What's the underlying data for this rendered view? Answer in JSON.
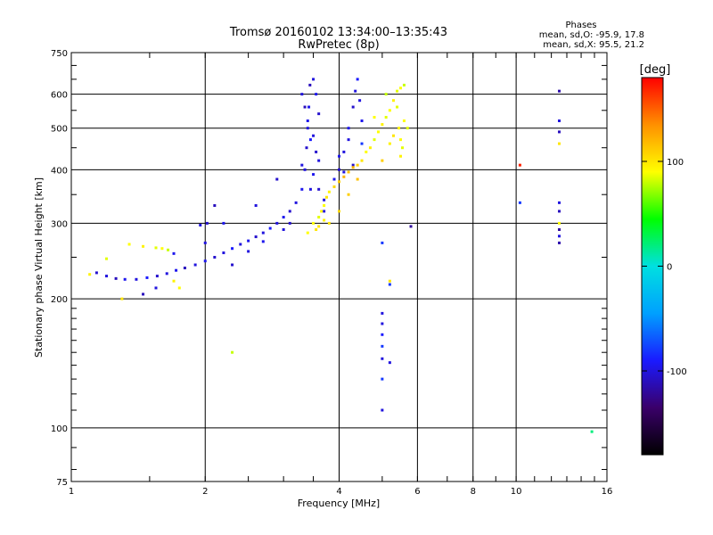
{
  "header": {
    "title": "Tromsø 20160102 13:34:00–13:35:43",
    "subtitle": "RwPretec (8p)"
  },
  "stats": {
    "heading": "Phases",
    "o_line": "mean, sd,O: -95.9, 17.8",
    "x_line": "mean, sd,X:  95.5, 21.2"
  },
  "colorbar": {
    "unit": "[deg]",
    "ticks": [
      "100",
      "0",
      "-100"
    ],
    "colors": [
      "#000000",
      "#3a006a",
      "#1a1aff",
      "#00a0ff",
      "#00e0e0",
      "#00ff00",
      "#ffff00",
      "#ff9000",
      "#ff0000"
    ]
  },
  "chart_data": {
    "type": "scatter",
    "title": "Tromsø 20160102 13:34:00–13:35:43",
    "subtitle": "RwPretec (8p)",
    "xlabel": "Frequency [MHz]",
    "ylabel": "Stationary phase Virtual Height [km]",
    "xscale": "log",
    "yscale": "log",
    "xlim": [
      1,
      16
    ],
    "ylim": [
      75,
      750
    ],
    "grid": true,
    "x_ticks": [
      "1",
      "2",
      "4",
      "6",
      "8",
      "10",
      "16"
    ],
    "y_ticks": [
      "75",
      "100",
      "200",
      "300",
      "400",
      "500",
      "600",
      "750"
    ],
    "colorbar_label": "[deg]",
    "colorbar_range": [
      -180,
      180
    ],
    "series": [
      {
        "description": "O-mode",
        "points": [
          [
            1.14,
            230,
            -105
          ],
          [
            1.2,
            226,
            -100
          ],
          [
            1.26,
            223,
            -110
          ],
          [
            1.32,
            222,
            -95
          ],
          [
            1.4,
            222,
            -100
          ],
          [
            1.48,
            224,
            -90
          ],
          [
            1.56,
            226,
            -105
          ],
          [
            1.64,
            229,
            -100
          ],
          [
            1.72,
            233,
            -95
          ],
          [
            1.8,
            236,
            -110
          ],
          [
            1.9,
            240,
            -100
          ],
          [
            2.0,
            245,
            -95
          ],
          [
            2.1,
            250,
            -105
          ],
          [
            2.2,
            256,
            -100
          ],
          [
            2.3,
            262,
            -90
          ],
          [
            2.4,
            268,
            -100
          ],
          [
            2.5,
            273,
            -95
          ],
          [
            2.6,
            279,
            -105
          ],
          [
            2.7,
            285,
            -100
          ],
          [
            2.8,
            292,
            -90
          ],
          [
            2.9,
            300,
            -100
          ],
          [
            3.0,
            310,
            -95
          ],
          [
            3.1,
            320,
            -105
          ],
          [
            3.2,
            335,
            -100
          ],
          [
            3.3,
            360,
            -95
          ],
          [
            3.35,
            400,
            -100
          ],
          [
            3.38,
            450,
            -105
          ],
          [
            3.4,
            500,
            -100
          ],
          [
            3.42,
            560,
            -95
          ],
          [
            3.44,
            630,
            -110
          ],
          [
            3.5,
            650,
            -100
          ],
          [
            3.55,
            600,
            -95
          ],
          [
            3.6,
            540,
            -105
          ],
          [
            3.3,
            410,
            -100
          ],
          [
            3.45,
            470,
            -90
          ],
          [
            2.2,
            300,
            -95
          ],
          [
            2.6,
            330,
            -100
          ],
          [
            2.9,
            380,
            -105
          ],
          [
            2.0,
            270,
            -100
          ],
          [
            1.7,
            255,
            -95
          ],
          [
            2.3,
            240,
            -105
          ],
          [
            2.5,
            258,
            -100
          ],
          [
            2.7,
            272,
            -95
          ],
          [
            3.0,
            290,
            -100
          ],
          [
            3.1,
            300,
            -105
          ],
          [
            3.7,
            340,
            -100
          ],
          [
            3.9,
            380,
            -95
          ],
          [
            4.0,
            400,
            -105
          ],
          [
            4.1,
            440,
            -100
          ],
          [
            4.2,
            500,
            -95
          ],
          [
            4.3,
            560,
            -105
          ],
          [
            4.35,
            610,
            -100
          ],
          [
            4.4,
            650,
            -90
          ],
          [
            4.45,
            580,
            -100
          ],
          [
            4.5,
            520,
            -95
          ],
          [
            4.1,
            395,
            -100
          ],
          [
            4.3,
            410,
            -105
          ],
          [
            4.2,
            470,
            -100
          ],
          [
            4.0,
            430,
            -95
          ],
          [
            4.5,
            460,
            -80
          ],
          [
            1.55,
            212,
            -100
          ],
          [
            1.45,
            205,
            -110
          ],
          [
            1.95,
            297,
            -100
          ],
          [
            2.02,
            300,
            -105
          ],
          [
            2.1,
            330,
            -110
          ],
          [
            5.0,
            270,
            -80
          ],
          [
            5.2,
            216,
            -80
          ],
          [
            5.0,
            185,
            -100
          ],
          [
            5.0,
            175,
            -100
          ],
          [
            5.0,
            165,
            -90
          ],
          [
            5.0,
            155,
            -80
          ],
          [
            5.0,
            145,
            -100
          ],
          [
            5.0,
            110,
            -100
          ],
          [
            5.0,
            130,
            -80
          ],
          [
            5.2,
            142,
            -100
          ],
          [
            5.8,
            295,
            -120
          ],
          [
            10.2,
            335,
            -80
          ],
          [
            12.5,
            610,
            -115
          ],
          [
            12.5,
            520,
            -100
          ],
          [
            12.5,
            490,
            -110
          ],
          [
            12.5,
            335,
            -100
          ],
          [
            12.5,
            320,
            -110
          ],
          [
            12.5,
            290,
            -120
          ],
          [
            12.5,
            280,
            -100
          ],
          [
            12.5,
            270,
            -115
          ],
          [
            3.3,
            600,
            -100
          ],
          [
            3.35,
            560,
            -110
          ],
          [
            3.4,
            520,
            -95
          ],
          [
            3.5,
            480,
            -100
          ],
          [
            3.55,
            440,
            -105
          ],
          [
            3.6,
            420,
            -100
          ],
          [
            3.5,
            390,
            -95
          ],
          [
            3.45,
            360,
            -100
          ],
          [
            3.6,
            360,
            -105
          ],
          [
            3.7,
            320,
            -100
          ]
        ]
      },
      {
        "description": "X-mode",
        "points": [
          [
            1.2,
            248,
            85
          ],
          [
            1.35,
            268,
            90
          ],
          [
            1.45,
            265,
            95
          ],
          [
            1.55,
            263,
            85
          ],
          [
            1.6,
            262,
            90
          ],
          [
            1.65,
            260,
            80
          ],
          [
            1.7,
            220,
            95
          ],
          [
            1.75,
            212,
            90
          ],
          [
            1.3,
            200,
            100
          ],
          [
            1.1,
            228,
            95
          ],
          [
            2.3,
            150,
            80
          ],
          [
            3.5,
            300,
            90
          ],
          [
            3.55,
            290,
            100
          ],
          [
            3.6,
            310,
            85
          ],
          [
            3.65,
            320,
            95
          ],
          [
            3.7,
            330,
            90
          ],
          [
            3.75,
            345,
            100
          ],
          [
            3.8,
            355,
            95
          ],
          [
            3.9,
            365,
            105
          ],
          [
            4.0,
            375,
            110
          ],
          [
            4.1,
            385,
            120
          ],
          [
            4.2,
            395,
            115
          ],
          [
            4.3,
            405,
            120
          ],
          [
            4.4,
            410,
            110
          ],
          [
            4.5,
            420,
            100
          ],
          [
            4.2,
            350,
            110
          ],
          [
            4.4,
            380,
            115
          ],
          [
            4.6,
            440,
            90
          ],
          [
            4.7,
            450,
            95
          ],
          [
            4.8,
            470,
            85
          ],
          [
            4.9,
            490,
            90
          ],
          [
            5.0,
            510,
            95
          ],
          [
            5.1,
            530,
            85
          ],
          [
            5.2,
            550,
            90
          ],
          [
            5.3,
            580,
            95
          ],
          [
            5.4,
            610,
            85
          ],
          [
            5.5,
            620,
            90
          ],
          [
            5.6,
            630,
            80
          ],
          [
            5.45,
            500,
            95
          ],
          [
            5.5,
            470,
            90
          ],
          [
            5.55,
            450,
            85
          ],
          [
            5.5,
            430,
            95
          ],
          [
            5.3,
            480,
            100
          ],
          [
            5.2,
            460,
            95
          ],
          [
            5.0,
            420,
            110
          ],
          [
            4.8,
            530,
            90
          ],
          [
            5.1,
            600,
            80
          ],
          [
            5.4,
            560,
            85
          ],
          [
            5.6,
            520,
            90
          ],
          [
            5.7,
            500,
            85
          ],
          [
            5.2,
            220,
            100
          ],
          [
            12.5,
            460,
            100
          ],
          [
            12.5,
            300,
            90
          ],
          [
            10.2,
            410,
            170
          ],
          [
            14.8,
            98,
            20
          ],
          [
            3.6,
            295,
            100
          ],
          [
            3.7,
            305,
            95
          ],
          [
            3.4,
            285,
            90
          ],
          [
            3.8,
            300,
            100
          ],
          [
            4.0,
            320,
            105
          ]
        ]
      }
    ]
  }
}
